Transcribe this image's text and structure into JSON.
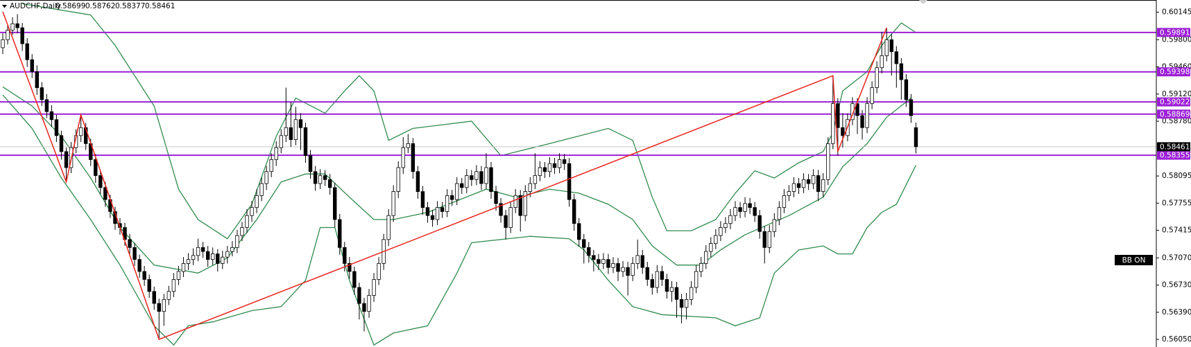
{
  "chart_data": {
    "type": "candlestick",
    "symbol": "AUDCHF,Daily",
    "ylim": [
      0.55955,
      0.60297
    ],
    "yticks": [
      0.60145,
      {
        "value": 0.598,
        "label": "0.59800"
      },
      {
        "value": 0.5946,
        "label": "0.59460"
      },
      {
        "value": 0.5912,
        "label": "0.59120"
      },
      {
        "value": 0.5878,
        "label": "0.58780"
      },
      0.58095,
      0.57755,
      0.57415,
      {
        "value": 0.5707,
        "label": "0.57070"
      },
      {
        "value": 0.5673,
        "label": "0.56730"
      },
      {
        "value": 0.5639,
        "label": "0.56390"
      },
      {
        "value": 0.5605,
        "label": "0.56050"
      }
    ],
    "levels": [
      0.59891,
      0.59398,
      0.59022,
      0.58869,
      0.58355
    ],
    "level_color": "#9c1fd6",
    "button": "BB ON",
    "candles": [
      [
        0.597,
        0.5988,
        0.5962,
        0.598
      ],
      [
        0.598,
        0.5999,
        0.5974,
        0.5992
      ],
      [
        0.5992,
        0.6008,
        0.5986,
        0.6
      ],
      [
        0.6,
        0.6012,
        0.5988,
        0.5995
      ],
      [
        0.5995,
        0.6001,
        0.5966,
        0.5975
      ],
      [
        0.5975,
        0.5982,
        0.5946,
        0.5955
      ],
      [
        0.5955,
        0.5962,
        0.5932,
        0.594
      ],
      [
        0.594,
        0.5948,
        0.5911,
        0.592
      ],
      [
        0.592,
        0.5927,
        0.5897,
        0.5905
      ],
      [
        0.5905,
        0.5912,
        0.5882,
        0.589
      ],
      [
        0.589,
        0.5898,
        0.5871,
        0.588
      ],
      [
        0.588,
        0.5886,
        0.5852,
        0.586
      ],
      [
        0.586,
        0.5866,
        0.583,
        0.584
      ],
      [
        0.584,
        0.5845,
        0.5802,
        0.582
      ],
      [
        0.582,
        0.5852,
        0.5813,
        0.5845
      ],
      [
        0.5845,
        0.5868,
        0.5838,
        0.586
      ],
      [
        0.586,
        0.5886,
        0.5852,
        0.587
      ],
      [
        0.587,
        0.5876,
        0.5842,
        0.585
      ],
      [
        0.585,
        0.5856,
        0.5822,
        0.583
      ],
      [
        0.583,
        0.5837,
        0.5801,
        0.581
      ],
      [
        0.581,
        0.5816,
        0.5787,
        0.5795
      ],
      [
        0.5795,
        0.5802,
        0.5771,
        0.578
      ],
      [
        0.578,
        0.5786,
        0.5757,
        0.5765
      ],
      [
        0.5765,
        0.5771,
        0.5742,
        0.575
      ],
      [
        0.575,
        0.5757,
        0.5736,
        0.5745
      ],
      [
        0.5745,
        0.5751,
        0.5722,
        0.573
      ],
      [
        0.573,
        0.5737,
        0.5712,
        0.572
      ],
      [
        0.572,
        0.5726,
        0.5697,
        0.5705
      ],
      [
        0.5705,
        0.5711,
        0.5682,
        0.569
      ],
      [
        0.569,
        0.5697,
        0.5672,
        0.568
      ],
      [
        0.568,
        0.5686,
        0.5657,
        0.5665
      ],
      [
        0.5665,
        0.5671,
        0.5642,
        0.565
      ],
      [
        0.565,
        0.5656,
        0.5605,
        0.564
      ],
      [
        0.564,
        0.5662,
        0.5622,
        0.5655
      ],
      [
        0.5655,
        0.5672,
        0.5648,
        0.5665
      ],
      [
        0.5665,
        0.5688,
        0.5658,
        0.568
      ],
      [
        0.568,
        0.5697,
        0.5673,
        0.569
      ],
      [
        0.569,
        0.5708,
        0.5683,
        0.57
      ],
      [
        0.57,
        0.5713,
        0.5692,
        0.5705
      ],
      [
        0.5705,
        0.5719,
        0.5698,
        0.571
      ],
      [
        0.571,
        0.5731,
        0.5703,
        0.572
      ],
      [
        0.572,
        0.5727,
        0.5707,
        0.5715
      ],
      [
        0.5715,
        0.5722,
        0.5696,
        0.5705
      ],
      [
        0.5705,
        0.572,
        0.5698,
        0.5712
      ],
      [
        0.5712,
        0.5718,
        0.569,
        0.57
      ],
      [
        0.57,
        0.5716,
        0.5693,
        0.5708
      ],
      [
        0.5708,
        0.5722,
        0.57,
        0.5715
      ],
      [
        0.5715,
        0.5728,
        0.5709,
        0.572
      ],
      [
        0.572,
        0.5742,
        0.5713,
        0.5735
      ],
      [
        0.5735,
        0.5752,
        0.5728,
        0.5745
      ],
      [
        0.5745,
        0.5768,
        0.5738,
        0.576
      ],
      [
        0.576,
        0.5778,
        0.5752,
        0.577
      ],
      [
        0.577,
        0.5793,
        0.5763,
        0.5785
      ],
      [
        0.5785,
        0.5808,
        0.5778,
        0.58
      ],
      [
        0.58,
        0.5822,
        0.5792,
        0.5815
      ],
      [
        0.5815,
        0.5838,
        0.5808,
        0.583
      ],
      [
        0.583,
        0.5853,
        0.5822,
        0.5845
      ],
      [
        0.5845,
        0.5868,
        0.5838,
        0.586
      ],
      [
        0.586,
        0.592,
        0.5852,
        0.587
      ],
      [
        0.587,
        0.5902,
        0.5846,
        0.5855
      ],
      [
        0.5855,
        0.5896,
        0.5848,
        0.588
      ],
      [
        0.588,
        0.5888,
        0.5842,
        0.587
      ],
      [
        0.587,
        0.5876,
        0.5826,
        0.5835
      ],
      [
        0.5835,
        0.5842,
        0.5806,
        0.5815
      ],
      [
        0.5815,
        0.5822,
        0.5791,
        0.58
      ],
      [
        0.58,
        0.5818,
        0.5793,
        0.581
      ],
      [
        0.581,
        0.5817,
        0.5797,
        0.5805
      ],
      [
        0.5805,
        0.5812,
        0.5786,
        0.5795
      ],
      [
        0.5795,
        0.5801,
        0.5745,
        0.5755
      ],
      [
        0.5755,
        0.5762,
        0.5711,
        0.572
      ],
      [
        0.572,
        0.5727,
        0.569,
        0.57
      ],
      [
        0.57,
        0.5708,
        0.5681,
        0.569
      ],
      [
        0.569,
        0.5696,
        0.5661,
        0.567
      ],
      [
        0.567,
        0.5676,
        0.563,
        0.565
      ],
      [
        0.565,
        0.5657,
        0.5615,
        0.564
      ],
      [
        0.564,
        0.5668,
        0.5632,
        0.566
      ],
      [
        0.566,
        0.5688,
        0.5652,
        0.568
      ],
      [
        0.568,
        0.5708,
        0.5673,
        0.57
      ],
      [
        0.57,
        0.5737,
        0.5692,
        0.573
      ],
      [
        0.573,
        0.5768,
        0.5722,
        0.576
      ],
      [
        0.576,
        0.5798,
        0.5752,
        0.579
      ],
      [
        0.579,
        0.5828,
        0.5782,
        0.582
      ],
      [
        0.582,
        0.5858,
        0.5812,
        0.5845
      ],
      [
        0.5845,
        0.5862,
        0.5838,
        0.585
      ],
      [
        0.585,
        0.5857,
        0.5806,
        0.5815
      ],
      [
        0.5815,
        0.5822,
        0.5781,
        0.579
      ],
      [
        0.579,
        0.5797,
        0.5761,
        0.577
      ],
      [
        0.577,
        0.5777,
        0.5751,
        0.576
      ],
      [
        0.576,
        0.5767,
        0.5746,
        0.5755
      ],
      [
        0.5755,
        0.5778,
        0.5748,
        0.577
      ],
      [
        0.577,
        0.5777,
        0.5757,
        0.5765
      ],
      [
        0.5765,
        0.5793,
        0.5758,
        0.5785
      ],
      [
        0.5785,
        0.5792,
        0.5772,
        0.578
      ],
      [
        0.578,
        0.5808,
        0.5773,
        0.58
      ],
      [
        0.58,
        0.5807,
        0.5787,
        0.5795
      ],
      [
        0.5795,
        0.5818,
        0.5788,
        0.581
      ],
      [
        0.581,
        0.5817,
        0.5797,
        0.5805
      ],
      [
        0.5805,
        0.5823,
        0.5798,
        0.5815
      ],
      [
        0.5815,
        0.5822,
        0.5792,
        0.58
      ],
      [
        0.58,
        0.5838,
        0.5793,
        0.582
      ],
      [
        0.582,
        0.5827,
        0.5781,
        0.579
      ],
      [
        0.579,
        0.5797,
        0.5766,
        0.5775
      ],
      [
        0.5775,
        0.5782,
        0.5751,
        0.576
      ],
      [
        0.576,
        0.5767,
        0.573,
        0.5745
      ],
      [
        0.5745,
        0.5778,
        0.5738,
        0.577
      ],
      [
        0.577,
        0.5793,
        0.5763,
        0.5785
      ],
      [
        0.5785,
        0.5792,
        0.574,
        0.576
      ],
      [
        0.576,
        0.5798,
        0.5753,
        0.579
      ],
      [
        0.579,
        0.5808,
        0.5783,
        0.58
      ],
      [
        0.58,
        0.5838,
        0.5793,
        0.581
      ],
      [
        0.581,
        0.5828,
        0.5803,
        0.582
      ],
      [
        0.582,
        0.5827,
        0.5807,
        0.5815
      ],
      [
        0.5815,
        0.5833,
        0.5808,
        0.5825
      ],
      [
        0.5825,
        0.5832,
        0.5812,
        0.582
      ],
      [
        0.582,
        0.5838,
        0.5813,
        0.583
      ],
      [
        0.583,
        0.5837,
        0.5817,
        0.5825
      ],
      [
        0.5825,
        0.5832,
        0.5771,
        0.578
      ],
      [
        0.578,
        0.5787,
        0.5741,
        0.575
      ],
      [
        0.575,
        0.5757,
        0.5721,
        0.573
      ],
      [
        0.573,
        0.5737,
        0.57,
        0.572
      ],
      [
        0.572,
        0.5727,
        0.5701,
        0.571
      ],
      [
        0.571,
        0.5717,
        0.569,
        0.5705
      ],
      [
        0.5705,
        0.5712,
        0.5692,
        0.57
      ],
      [
        0.57,
        0.5713,
        0.5693,
        0.5705
      ],
      [
        0.5705,
        0.5712,
        0.5687,
        0.5695
      ],
      [
        0.5695,
        0.5708,
        0.5688,
        0.57
      ],
      [
        0.57,
        0.5707,
        0.5678,
        0.569
      ],
      [
        0.569,
        0.5703,
        0.5683,
        0.5695
      ],
      [
        0.5695,
        0.5702,
        0.566,
        0.5685
      ],
      [
        0.5685,
        0.5708,
        0.5678,
        0.57
      ],
      [
        0.57,
        0.573,
        0.5693,
        0.571
      ],
      [
        0.571,
        0.5717,
        0.5687,
        0.5695
      ],
      [
        0.5695,
        0.5702,
        0.5672,
        0.568
      ],
      [
        0.568,
        0.5687,
        0.5661,
        0.567
      ],
      [
        0.567,
        0.5698,
        0.5663,
        0.569
      ],
      [
        0.569,
        0.5697,
        0.5672,
        0.568
      ],
      [
        0.568,
        0.5687,
        0.5656,
        0.5665
      ],
      [
        0.5665,
        0.5678,
        0.5652,
        0.567
      ],
      [
        0.567,
        0.5677,
        0.5632,
        0.5655
      ],
      [
        0.5655,
        0.5662,
        0.5625,
        0.5645
      ],
      [
        0.5645,
        0.5663,
        0.563,
        0.5655
      ],
      [
        0.5655,
        0.5678,
        0.5648,
        0.567
      ],
      [
        0.567,
        0.5698,
        0.5663,
        0.569
      ],
      [
        0.569,
        0.5708,
        0.5683,
        0.57
      ],
      [
        0.57,
        0.5723,
        0.5693,
        0.5715
      ],
      [
        0.5715,
        0.5733,
        0.5708,
        0.5725
      ],
      [
        0.5725,
        0.5743,
        0.5718,
        0.5735
      ],
      [
        0.5735,
        0.5753,
        0.5728,
        0.5745
      ],
      [
        0.5745,
        0.5758,
        0.5738,
        0.575
      ],
      [
        0.575,
        0.5768,
        0.5743,
        0.576
      ],
      [
        0.576,
        0.5778,
        0.5753,
        0.577
      ],
      [
        0.577,
        0.5777,
        0.5757,
        0.5765
      ],
      [
        0.5765,
        0.5783,
        0.5758,
        0.5775
      ],
      [
        0.5775,
        0.5782,
        0.5762,
        0.577
      ],
      [
        0.577,
        0.5777,
        0.5752,
        0.576
      ],
      [
        0.576,
        0.5767,
        0.5731,
        0.574
      ],
      [
        0.574,
        0.5747,
        0.57,
        0.572
      ],
      [
        0.572,
        0.5748,
        0.5713,
        0.574
      ],
      [
        0.574,
        0.5763,
        0.5733,
        0.5755
      ],
      [
        0.5755,
        0.5778,
        0.5748,
        0.577
      ],
      [
        0.577,
        0.5793,
        0.5763,
        0.5785
      ],
      [
        0.5785,
        0.5798,
        0.5778,
        0.579
      ],
      [
        0.579,
        0.5808,
        0.5783,
        0.58
      ],
      [
        0.58,
        0.5807,
        0.5787,
        0.5795
      ],
      [
        0.5795,
        0.5813,
        0.5788,
        0.5805
      ],
      [
        0.5805,
        0.5812,
        0.5792,
        0.58
      ],
      [
        0.58,
        0.5818,
        0.5793,
        0.581
      ],
      [
        0.581,
        0.5817,
        0.5778,
        0.579
      ],
      [
        0.579,
        0.5813,
        0.5783,
        0.5805
      ],
      [
        0.5805,
        0.5858,
        0.5798,
        0.585
      ],
      [
        0.585,
        0.5935,
        0.5843,
        0.59
      ],
      [
        0.59,
        0.5907,
        0.5835,
        0.587
      ],
      [
        0.587,
        0.5888,
        0.5845,
        0.586
      ],
      [
        0.586,
        0.5888,
        0.5853,
        0.588
      ],
      [
        0.588,
        0.5908,
        0.5873,
        0.59
      ],
      [
        0.59,
        0.5907,
        0.5862,
        0.5885
      ],
      [
        0.5885,
        0.5892,
        0.5855,
        0.587
      ],
      [
        0.587,
        0.5908,
        0.5863,
        0.59
      ],
      [
        0.59,
        0.5928,
        0.5893,
        0.592
      ],
      [
        0.592,
        0.5953,
        0.5913,
        0.5945
      ],
      [
        0.5945,
        0.599,
        0.5938,
        0.596
      ],
      [
        0.596,
        0.5995,
        0.5953,
        0.598
      ],
      [
        0.598,
        0.5987,
        0.5935,
        0.5965
      ],
      [
        0.5965,
        0.5972,
        0.592,
        0.595
      ],
      [
        0.595,
        0.5957,
        0.5905,
        0.593
      ],
      [
        0.593,
        0.5937,
        0.5896,
        0.5905
      ],
      [
        0.5905,
        0.5912,
        0.5876,
        0.5885
      ],
      [
        0.58699,
        0.58762,
        0.58377,
        0.58461
      ]
    ],
    "bands": [
      {
        "color": "#2f8a4c",
        "x": [
          4,
          18,
          23,
          31,
          36,
          40,
          46,
          51,
          56,
          60,
          66,
          70,
          73,
          76,
          79,
          84,
          96,
          102,
          112,
          124,
          129,
          133,
          136,
          141,
          146,
          150,
          154,
          158,
          163,
          168,
          170,
          172,
          177,
          180,
          184,
          187
        ],
        "values": [
          0.6025,
          0.6011,
          0.5973,
          0.5897,
          0.5793,
          0.5755,
          0.5731,
          0.5774,
          0.5859,
          0.5907,
          0.5888,
          0.5916,
          0.5935,
          0.5916,
          0.5854,
          0.5869,
          0.5878,
          0.5835,
          0.585,
          0.5869,
          0.5854,
          0.5783,
          0.5741,
          0.5741,
          0.5755,
          0.5788,
          0.5816,
          0.5807,
          0.5826,
          0.584,
          0.5864,
          0.5916,
          0.594,
          0.5973,
          0.6001,
          0.5989
        ]
      },
      {
        "color": "#2f8a4c",
        "x": [
          0,
          6,
          12,
          18,
          24,
          31,
          40,
          46,
          52,
          57,
          62,
          66,
          71,
          76,
          80,
          87,
          99,
          105,
          112,
          118,
          124,
          129,
          133,
          138,
          143,
          147,
          152,
          161,
          168,
          172,
          177,
          181,
          186
        ],
        "values": [
          0.5921,
          0.5897,
          0.5859,
          0.5807,
          0.5745,
          0.5698,
          0.5688,
          0.5707,
          0.5755,
          0.5802,
          0.5812,
          0.5812,
          0.5783,
          0.5755,
          0.5755,
          0.5764,
          0.5793,
          0.5783,
          0.5793,
          0.5788,
          0.5774,
          0.5755,
          0.5722,
          0.5698,
          0.5698,
          0.5717,
          0.5736,
          0.576,
          0.5783,
          0.5821,
          0.585,
          0.5883,
          0.5907
        ]
      },
      {
        "color": "#2f8a4c",
        "x": [
          0,
          6,
          12,
          18,
          24,
          31,
          35,
          38,
          43,
          51,
          57,
          62,
          65,
          68,
          71,
          76,
          80,
          87,
          93,
          96,
          108,
          116,
          119,
          124,
          129,
          135,
          146,
          150,
          155,
          158,
          163,
          168,
          171,
          174,
          177,
          180,
          183,
          187
        ],
        "values": [
          0.5911,
          0.5869,
          0.5807,
          0.5755,
          0.5698,
          0.5622,
          0.5598,
          0.5622,
          0.5627,
          0.5641,
          0.5646,
          0.5679,
          0.5745,
          0.5745,
          0.5679,
          0.5598,
          0.5613,
          0.5622,
          0.5688,
          0.5726,
          0.5734,
          0.5731,
          0.5717,
          0.5679,
          0.5646,
          0.5636,
          0.5632,
          0.5622,
          0.5632,
          0.5688,
          0.5717,
          0.5722,
          0.5712,
          0.5712,
          0.5745,
          0.5764,
          0.5774,
          0.5823
        ]
      }
    ],
    "zigzag": {
      "color": "#e8231f",
      "x": [
        0,
        13,
        16,
        32,
        170,
        171,
        181
      ],
      "values": [
        0.6015,
        0.5802,
        0.5886,
        0.5605,
        0.5935,
        0.584,
        0.5995
      ]
    }
  }
}
